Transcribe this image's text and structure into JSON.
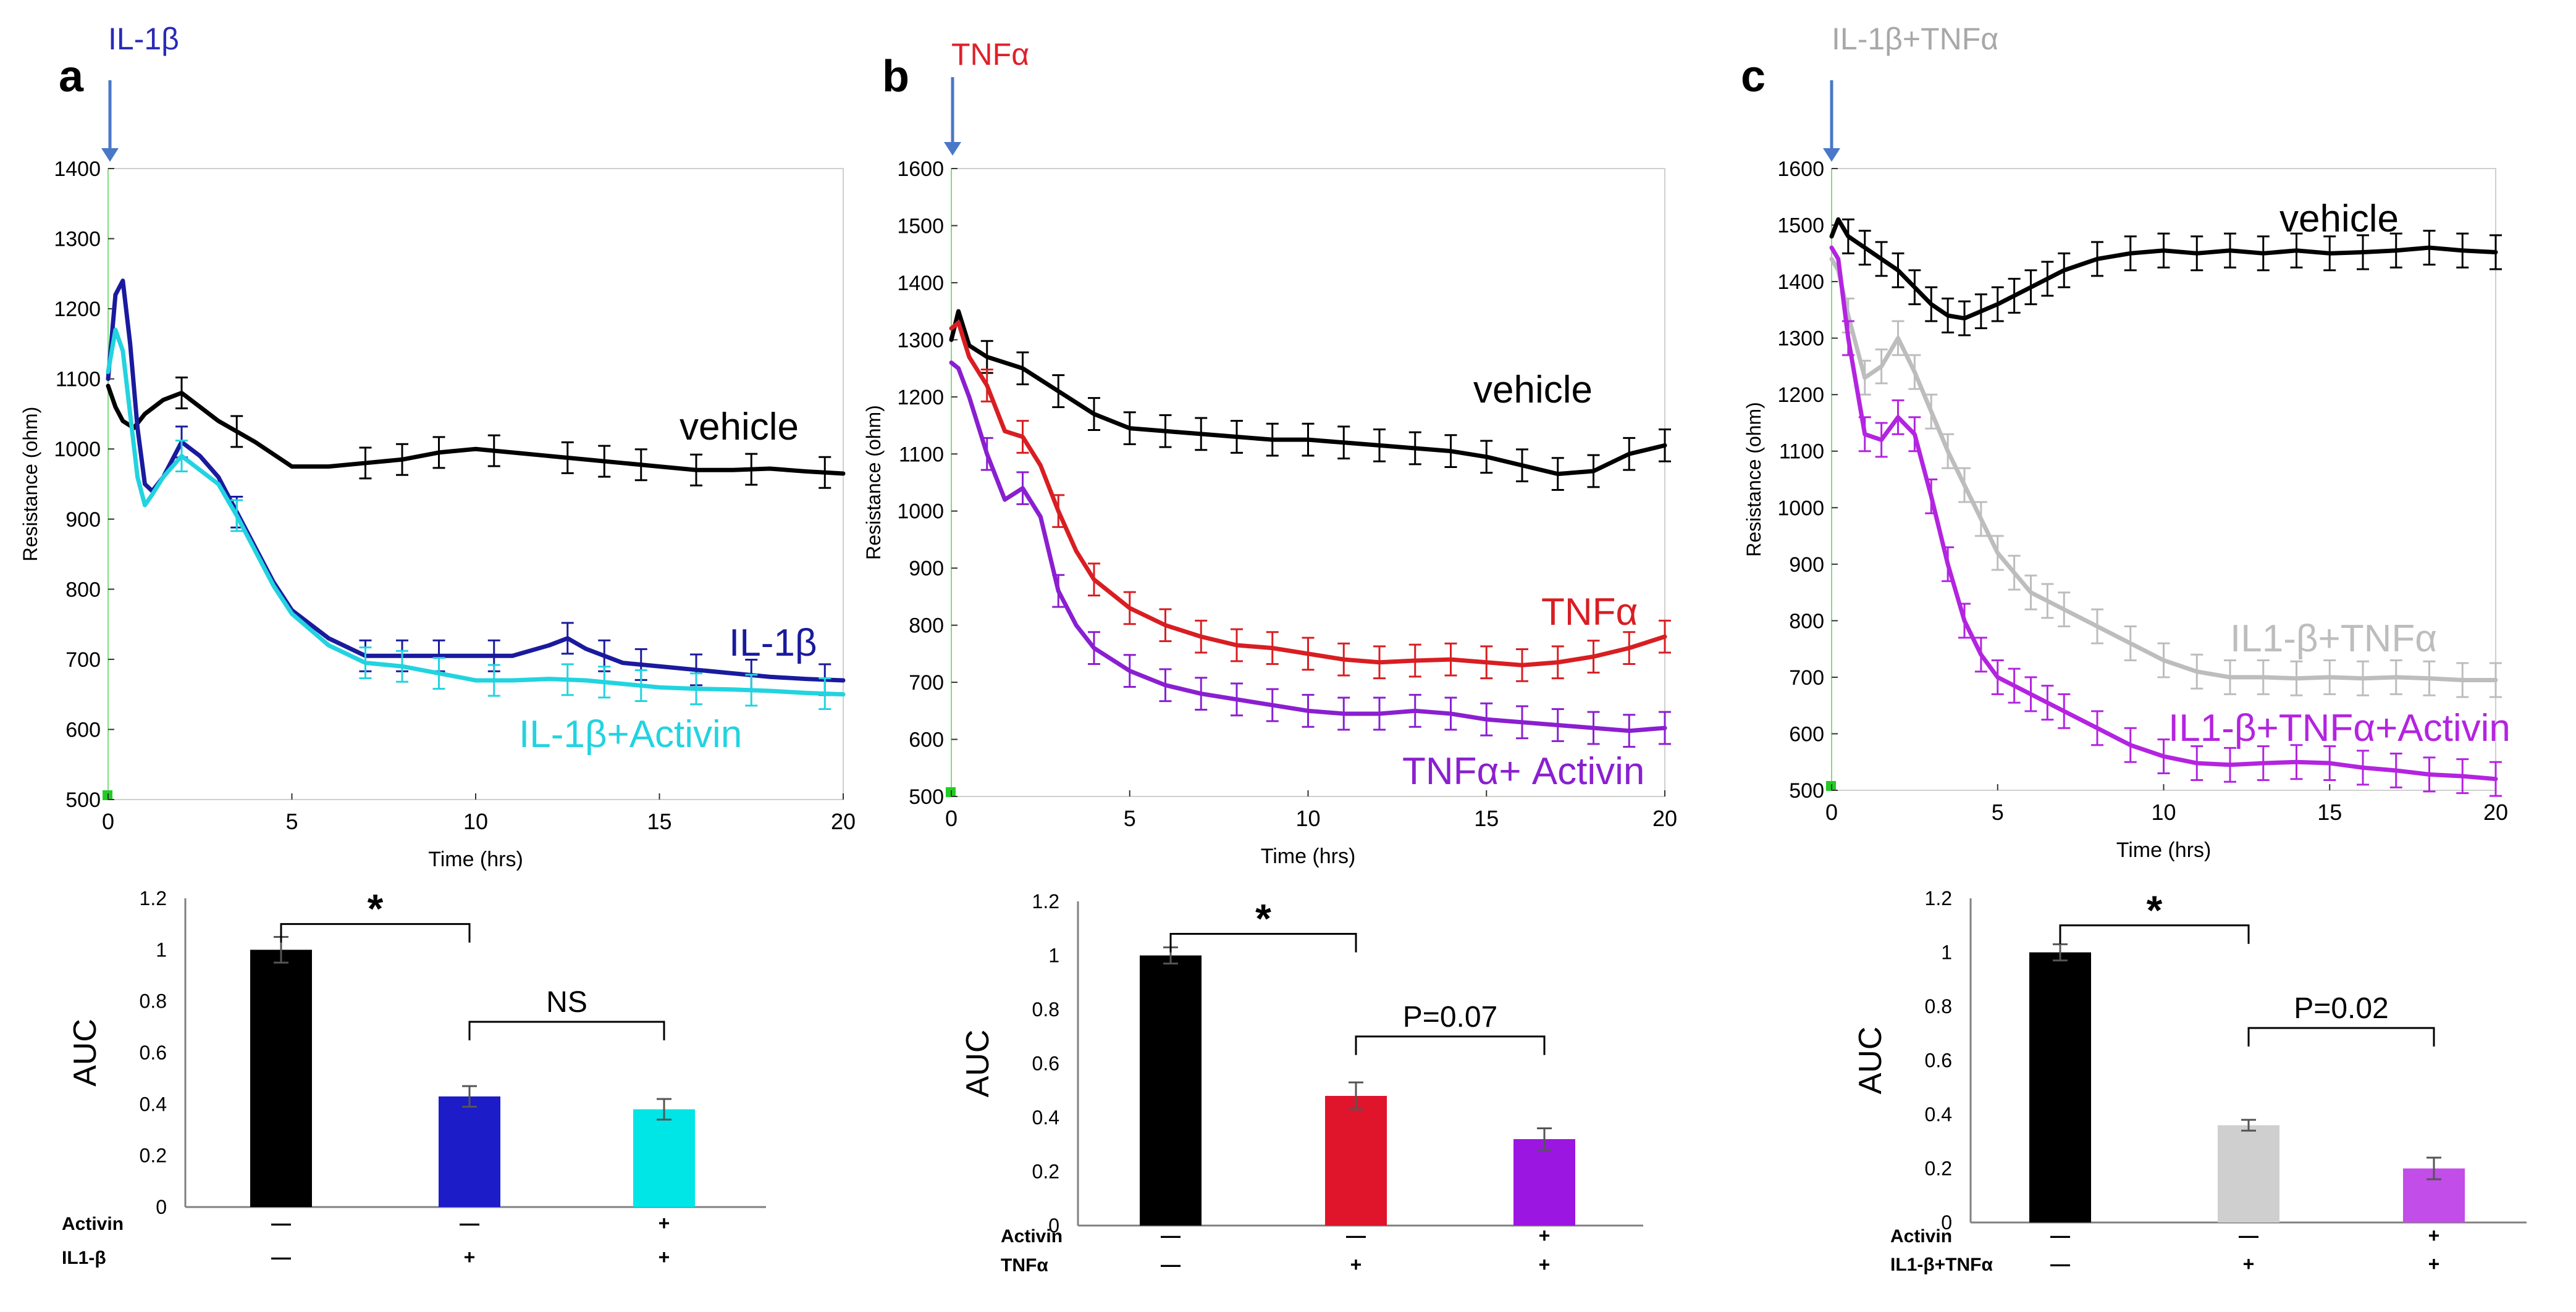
{
  "figure": {
    "panels": [
      {
        "letter": "a",
        "stimulus": "IL-1β",
        "stimulus_color": "#2a2ab8"
      },
      {
        "letter": "b",
        "stimulus": "TNFα",
        "stimulus_color": "#e0202a"
      },
      {
        "letter": "c",
        "stimulus": "IL-1β+TNFα",
        "stimulus_color": "#a8a8a8"
      }
    ]
  },
  "chart_data": [
    {
      "type": "line",
      "panel": "a",
      "title": "",
      "xlabel": "Time (hrs)",
      "ylabel": "Resistance (ohm)",
      "xlim": [
        0,
        20
      ],
      "ylim": [
        500,
        1400
      ],
      "x_ticks": [
        0,
        5,
        10,
        15,
        20
      ],
      "y_ticks": [
        500,
        600,
        700,
        800,
        900,
        1000,
        1100,
        1200,
        1300,
        1400
      ],
      "series": [
        {
          "name": "vehicle",
          "label": "vehicle",
          "color": "#000000",
          "x": [
            0,
            0.2,
            0.4,
            0.7,
            1.0,
            1.5,
            2,
            2.5,
            3,
            4,
            5,
            6,
            7,
            8,
            9,
            10,
            11,
            12,
            13,
            14,
            15,
            16,
            17,
            18,
            19,
            20
          ],
          "y": [
            1090,
            1060,
            1040,
            1030,
            1050,
            1070,
            1080,
            1060,
            1040,
            1010,
            975,
            975,
            980,
            985,
            995,
            1000,
            995,
            990,
            985,
            980,
            975,
            970,
            970,
            972,
            968,
            965
          ]
        },
        {
          "name": "IL-1β",
          "label": "IL-1β",
          "color": "#1a1a9e",
          "x": [
            0,
            0.2,
            0.4,
            0.6,
            0.8,
            1.0,
            1.2,
            1.5,
            2,
            2.5,
            3,
            3.5,
            4,
            4.5,
            5,
            6,
            7,
            8,
            9,
            10,
            11,
            12,
            12.5,
            13,
            14,
            15,
            16,
            17,
            18,
            19,
            20
          ],
          "y": [
            1100,
            1220,
            1240,
            1150,
            1030,
            950,
            940,
            960,
            1010,
            990,
            960,
            910,
            860,
            810,
            770,
            730,
            705,
            705,
            705,
            705,
            705,
            720,
            730,
            715,
            695,
            690,
            685,
            680,
            675,
            672,
            670
          ]
        },
        {
          "name": "IL-1β+Activin",
          "label": "IL-1β+Activin",
          "color": "#22d3e0",
          "x": [
            0,
            0.2,
            0.4,
            0.6,
            0.8,
            1.0,
            1.2,
            1.5,
            2,
            2.5,
            3,
            3.5,
            4,
            4.5,
            5,
            6,
            7,
            8,
            9,
            10,
            11,
            12,
            13,
            14,
            15,
            16,
            17,
            18,
            19,
            20
          ],
          "y": [
            1110,
            1170,
            1140,
            1050,
            960,
            920,
            935,
            960,
            990,
            970,
            950,
            905,
            855,
            805,
            765,
            720,
            695,
            690,
            680,
            670,
            670,
            672,
            670,
            665,
            660,
            658,
            657,
            655,
            652,
            650
          ]
        }
      ],
      "error_bar_x": [
        2,
        3.5,
        7,
        8,
        9,
        10.5,
        12.5,
        13.5,
        14.5,
        16,
        17.5,
        19.5
      ],
      "error_bar_half_height": 22
    },
    {
      "type": "line",
      "panel": "b",
      "title": "",
      "xlabel": "Time (hrs)",
      "ylabel": "Resistance (ohm)",
      "xlim": [
        0,
        20
      ],
      "ylim": [
        500,
        1600
      ],
      "x_ticks": [
        0,
        5,
        10,
        15,
        20
      ],
      "y_ticks": [
        500,
        600,
        700,
        800,
        900,
        1000,
        1100,
        1200,
        1300,
        1400,
        1500,
        1600
      ],
      "series": [
        {
          "name": "vehicle",
          "label": "vehicle",
          "color": "#000000",
          "x": [
            0,
            0.2,
            0.5,
            1,
            2,
            3,
            4,
            5,
            6,
            7,
            8,
            9,
            10,
            11,
            12,
            13,
            14,
            15,
            16,
            17,
            18,
            19,
            20
          ],
          "y": [
            1300,
            1350,
            1290,
            1270,
            1250,
            1210,
            1170,
            1145,
            1140,
            1135,
            1130,
            1125,
            1125,
            1120,
            1115,
            1110,
            1105,
            1095,
            1080,
            1065,
            1070,
            1100,
            1115
          ]
        },
        {
          "name": "TNFα",
          "label": "TNFα",
          "color": "#d81e22",
          "x": [
            0,
            0.2,
            0.5,
            1,
            1.5,
            2,
            2.5,
            3,
            3.5,
            4,
            5,
            6,
            7,
            8,
            9,
            10,
            11,
            12,
            13,
            14,
            15,
            16,
            17,
            18,
            19,
            20
          ],
          "y": [
            1320,
            1330,
            1270,
            1220,
            1140,
            1130,
            1080,
            1000,
            930,
            880,
            830,
            800,
            780,
            765,
            760,
            750,
            740,
            735,
            738,
            740,
            735,
            730,
            735,
            745,
            760,
            780
          ]
        },
        {
          "name": "TNFα+ Activin",
          "label": "TNFα+ Activin",
          "color": "#8a1fd0",
          "x": [
            0,
            0.2,
            0.5,
            1,
            1.5,
            2,
            2.5,
            3,
            3.5,
            4,
            5,
            6,
            7,
            8,
            9,
            10,
            11,
            12,
            13,
            14,
            15,
            16,
            17,
            18,
            19,
            20
          ],
          "y": [
            1260,
            1250,
            1200,
            1100,
            1020,
            1040,
            990,
            860,
            800,
            760,
            720,
            695,
            680,
            670,
            660,
            650,
            645,
            645,
            650,
            645,
            635,
            630,
            625,
            620,
            615,
            620
          ]
        }
      ],
      "error_bar_x": [
        1,
        2,
        3,
        4,
        5,
        6,
        7,
        8,
        9,
        10,
        11,
        12,
        13,
        14,
        15,
        16,
        17,
        18,
        19,
        20
      ],
      "error_bar_half_height": 28
    },
    {
      "type": "line",
      "panel": "c",
      "title": "",
      "xlabel": "Time (hrs)",
      "ylabel": "Resistance (ohm)",
      "xlim": [
        0,
        20
      ],
      "ylim": [
        500,
        1600
      ],
      "x_ticks": [
        0,
        5,
        10,
        15,
        20
      ],
      "y_ticks": [
        500,
        600,
        700,
        800,
        900,
        1000,
        1100,
        1200,
        1300,
        1400,
        1500,
        1600
      ],
      "series": [
        {
          "name": "vehicle",
          "label": "vehicle",
          "color": "#000000",
          "x": [
            0,
            0.2,
            0.5,
            1,
            2,
            3,
            3.5,
            4,
            5,
            6,
            7,
            8,
            9,
            10,
            11,
            12,
            13,
            14,
            15,
            16,
            17,
            18,
            19,
            20
          ],
          "y": [
            1480,
            1510,
            1480,
            1460,
            1420,
            1360,
            1340,
            1335,
            1360,
            1390,
            1420,
            1440,
            1450,
            1455,
            1450,
            1455,
            1450,
            1455,
            1450,
            1452,
            1455,
            1460,
            1455,
            1452
          ]
        },
        {
          "name": "IL1-β+TNFα",
          "label": "IL1-β+TNFα",
          "color": "#bdbdbd",
          "x": [
            0,
            0.2,
            0.5,
            1,
            1.5,
            2,
            2.5,
            3,
            3.5,
            4,
            5,
            6,
            7,
            8,
            9,
            10,
            11,
            12,
            13,
            14,
            15,
            16,
            17,
            18,
            19,
            20
          ],
          "y": [
            1440,
            1420,
            1340,
            1230,
            1250,
            1300,
            1240,
            1170,
            1100,
            1040,
            920,
            850,
            820,
            790,
            760,
            730,
            710,
            700,
            700,
            698,
            700,
            698,
            700,
            698,
            695,
            695
          ]
        },
        {
          "name": "IL1-β+TNFα+Activin",
          "label": "IL1-β+TNFα+Activin",
          "color": "#b324e0",
          "x": [
            0,
            0.2,
            0.5,
            1,
            1.5,
            2,
            2.5,
            3,
            3.5,
            4,
            4.5,
            5,
            6,
            7,
            8,
            9,
            10,
            11,
            12,
            13,
            14,
            15,
            16,
            17,
            18,
            19,
            20
          ],
          "y": [
            1460,
            1440,
            1300,
            1130,
            1120,
            1160,
            1130,
            1020,
            900,
            800,
            740,
            700,
            670,
            640,
            610,
            580,
            560,
            548,
            545,
            548,
            550,
            548,
            540,
            535,
            528,
            525,
            520
          ]
        }
      ],
      "error_bar_x": [
        0.5,
        1,
        1.5,
        2,
        2.5,
        3,
        3.5,
        4,
        4.5,
        5,
        5.5,
        6,
        6.5,
        7,
        8,
        9,
        10,
        11,
        12,
        13,
        14,
        15,
        16,
        17,
        18,
        19,
        20
      ],
      "error_bar_half_height": 30
    },
    {
      "type": "bar",
      "panel": "a",
      "ylabel": "AUC",
      "ylim": [
        0,
        1.2
      ],
      "y_ticks": [
        0,
        0.2,
        0.4,
        0.6,
        0.8,
        1,
        1.2
      ],
      "y_tick_labels": [
        "0",
        "0.2",
        "0.4",
        "0.6",
        "0.8",
        "1",
        "1.2"
      ],
      "categories": [
        "vehicle",
        "IL-1β",
        "IL-1β+Activin"
      ],
      "values": [
        1.0,
        0.43,
        0.38
      ],
      "errors": [
        0.05,
        0.04,
        0.04
      ],
      "colors": [
        "#000000",
        "#1c1cc8",
        "#00e5e5"
      ],
      "condition_rows": [
        {
          "label": "Activin",
          "marks": [
            "—",
            "—",
            "+"
          ]
        },
        {
          "label": "IL1-β",
          "marks": [
            "—",
            "+",
            "+"
          ]
        }
      ],
      "brackets": [
        {
          "from": 0,
          "to": 1,
          "label": "*",
          "at": 1.1
        },
        {
          "from": 1,
          "to": 2,
          "label": "NS",
          "at": 0.72
        }
      ]
    },
    {
      "type": "bar",
      "panel": "b",
      "ylabel": "AUC",
      "ylim": [
        0,
        1.2
      ],
      "y_ticks": [
        0,
        0.2,
        0.4,
        0.6,
        0.8,
        1,
        1.2
      ],
      "y_tick_labels": [
        "0",
        "0.2",
        "0.4",
        "0.6",
        "0.8",
        "1",
        "1.2"
      ],
      "categories": [
        "vehicle",
        "TNFα",
        "TNFα+Activin"
      ],
      "values": [
        1.0,
        0.48,
        0.32
      ],
      "errors": [
        0.03,
        0.05,
        0.04
      ],
      "colors": [
        "#000000",
        "#e0142a",
        "#9b16e0"
      ],
      "condition_rows": [
        {
          "label": "Activin",
          "marks": [
            "—",
            "—",
            "+"
          ]
        },
        {
          "label": "TNFα",
          "marks": [
            "—",
            "+",
            "+"
          ]
        }
      ],
      "brackets": [
        {
          "from": 0,
          "to": 1,
          "label": "*",
          "at": 1.08
        },
        {
          "from": 1,
          "to": 2,
          "label": "P=0.07",
          "at": 0.7
        }
      ]
    },
    {
      "type": "bar",
      "panel": "c",
      "ylabel": "AUC",
      "ylim": [
        0,
        1.2
      ],
      "y_ticks": [
        0,
        0.2,
        0.4,
        0.6,
        0.8,
        1,
        1.2
      ],
      "y_tick_labels": [
        "0",
        "0.2",
        "0.4",
        "0.6",
        "0.8",
        "1",
        "1.2"
      ],
      "categories": [
        "vehicle",
        "IL1-β+TNFα",
        "IL1-β+TNFα+Activin"
      ],
      "values": [
        1.0,
        0.36,
        0.2
      ],
      "errors": [
        0.03,
        0.02,
        0.04
      ],
      "colors": [
        "#000000",
        "#cfcfcf",
        "#c24de8"
      ],
      "condition_rows": [
        {
          "label": "Activin",
          "marks": [
            "—",
            "—",
            "+"
          ]
        },
        {
          "label": "IL1-β+TNFα",
          "marks": [
            "—",
            "+",
            "+"
          ]
        }
      ],
      "brackets": [
        {
          "from": 0,
          "to": 1,
          "label": "*",
          "at": 1.1
        },
        {
          "from": 1,
          "to": 2,
          "label": "P=0.02",
          "at": 0.72
        }
      ]
    }
  ]
}
